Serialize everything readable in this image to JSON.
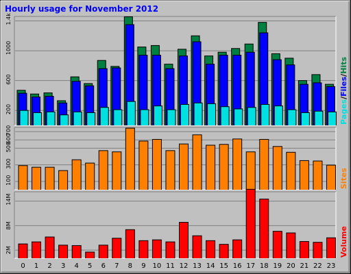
{
  "title": "Hourly usage for November 2012",
  "colors": {
    "background": "#c0c0c0",
    "plot_background": "#c0c0c0",
    "pages": "#00e0e0",
    "files": "#0000ff",
    "hits": "#008040",
    "sites": "#ff8000",
    "volume": "#ff0000",
    "title": "#0000ff"
  },
  "legends": {
    "pages": "Pages",
    "files": "Files",
    "hits": "Hits",
    "sep1": "/",
    "sep2": "/",
    "sites": "Sites",
    "volume": "Volume"
  },
  "chart_data": [
    {
      "type": "bar",
      "title": "Hourly usage for November 2012",
      "categories": [
        "0",
        "1",
        "2",
        "3",
        "4",
        "5",
        "6",
        "7",
        "8",
        "9",
        "10",
        "11",
        "12",
        "13",
        "14",
        "15",
        "16",
        "17",
        "18",
        "19",
        "20",
        "21",
        "22",
        "23"
      ],
      "ylim": [
        0,
        1460
      ],
      "yticks": [
        "200",
        "600",
        "1000",
        "1.4k"
      ],
      "ytick_values": [
        200,
        600,
        1000,
        1400
      ],
      "series": [
        {
          "name": "Hits",
          "values": [
            475,
            425,
            440,
            335,
            655,
            565,
            875,
            795,
            1460,
            1055,
            1075,
            825,
            1025,
            1205,
            935,
            985,
            1035,
            1095,
            1385,
            965,
            905,
            605,
            685,
            555
          ]
        },
        {
          "name": "Files",
          "values": [
            435,
            385,
            395,
            305,
            595,
            535,
            765,
            775,
            1355,
            945,
            945,
            765,
            935,
            1125,
            825,
            945,
            945,
            985,
            1245,
            885,
            815,
            555,
            575,
            525
          ]
        },
        {
          "name": "Pages",
          "values": [
            205,
            175,
            185,
            145,
            185,
            175,
            245,
            215,
            325,
            215,
            265,
            215,
            285,
            305,
            295,
            255,
            225,
            245,
            285,
            265,
            215,
            175,
            195,
            185
          ]
        }
      ]
    },
    {
      "type": "bar",
      "categories": [
        "0",
        "1",
        "2",
        "3",
        "4",
        "5",
        "6",
        "7",
        "8",
        "9",
        "10",
        "11",
        "12",
        "13",
        "14",
        "15",
        "16",
        "17",
        "18",
        "19",
        "20",
        "21",
        "22",
        "23"
      ],
      "ylim": [
        0,
        750
      ],
      "yticks": [
        "100",
        "300",
        "500",
        "600",
        "700"
      ],
      "ytick_values": [
        100,
        300,
        500,
        600,
        700
      ],
      "series": [
        {
          "name": "Sites",
          "values": [
            295,
            275,
            275,
            235,
            365,
            325,
            475,
            460,
            745,
            590,
            610,
            475,
            555,
            665,
            540,
            550,
            615,
            460,
            610,
            525,
            455,
            355,
            350,
            300
          ]
        }
      ]
    },
    {
      "type": "bar",
      "categories": [
        "0",
        "1",
        "2",
        "3",
        "4",
        "5",
        "6",
        "7",
        "8",
        "9",
        "10",
        "11",
        "12",
        "13",
        "14",
        "15",
        "16",
        "17",
        "18",
        "19",
        "20",
        "21",
        "22",
        "23"
      ],
      "ylim": [
        0,
        16.3
      ],
      "yticks": [
        "2M",
        "8M",
        "14M"
      ],
      "ytick_values": [
        2,
        8,
        14
      ],
      "series": [
        {
          "name": "Volume",
          "values": [
            3.6,
            4.1,
            5.3,
            3.3,
            3.2,
            1.6,
            3.3,
            5.0,
            7.1,
            4.4,
            4.6,
            4.1,
            8.9,
            5.6,
            4.4,
            3.5,
            4.6,
            17.0,
            14.6,
            6.7,
            6.3,
            4.2,
            4.0,
            5.1
          ]
        }
      ]
    }
  ]
}
